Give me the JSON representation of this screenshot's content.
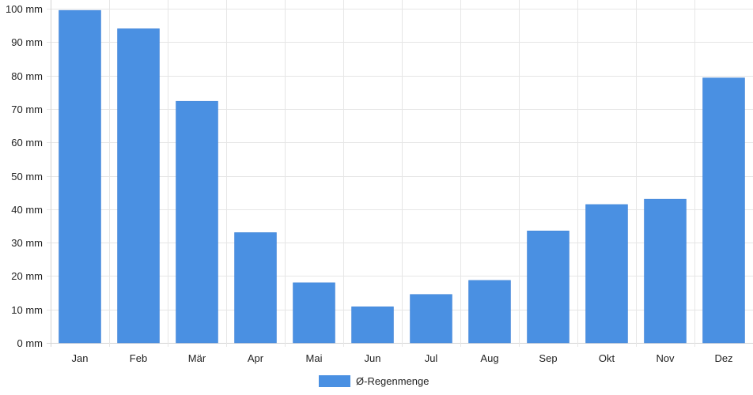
{
  "chart_data": {
    "type": "bar",
    "categories": [
      "Jan",
      "Feb",
      "Mär",
      "Apr",
      "Mai",
      "Jun",
      "Jul",
      "Aug",
      "Sep",
      "Okt",
      "Nov",
      "Dez"
    ],
    "series": [
      {
        "name": "Ø-Regenmenge",
        "color": "#4a90e2",
        "values": [
          99.5,
          94,
          72.3,
          33,
          18,
          10.8,
          14.5,
          18.7,
          33.5,
          41.4,
          43,
          79.3
        ]
      }
    ],
    "y_tick_values": [
      0,
      10,
      20,
      30,
      40,
      50,
      60,
      70,
      80,
      90,
      100
    ],
    "y_tick_labels": [
      "0 mm",
      "10 mm",
      "20 mm",
      "30 mm",
      "40 mm",
      "50 mm",
      "60 mm",
      "70 mm",
      "80 mm",
      "90 mm",
      "100 mm"
    ],
    "ylim": [
      0,
      100
    ],
    "grid": true,
    "legend_position": "bottom-center"
  }
}
